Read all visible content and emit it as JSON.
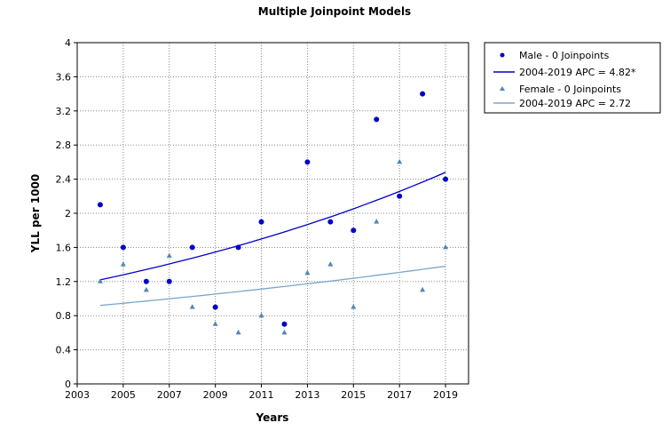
{
  "chart_data": {
    "type": "scatter",
    "title": "Multiple Joinpoint Models",
    "xlabel": "Years",
    "ylabel": "YLL per 1000",
    "xlim": [
      2003,
      2020
    ],
    "ylim": [
      0,
      4
    ],
    "x_ticks": [
      "2003",
      "2005",
      "2007",
      "2009",
      "2011",
      "2013",
      "2015",
      "2017",
      "2019"
    ],
    "y_ticks": [
      "0",
      "0.4",
      "0.8",
      "1.2",
      "1.6",
      "2",
      "2.4",
      "2.8",
      "3.2",
      "3.6",
      "4"
    ],
    "grid": true,
    "legend_position": "right",
    "series": [
      {
        "name": "Male - 0 Joinpoints",
        "marker": "circle",
        "color": "#0000cc",
        "points": [
          [
            2004,
            2.1
          ],
          [
            2005,
            1.6
          ],
          [
            2006,
            1.2
          ],
          [
            2007,
            1.2
          ],
          [
            2008,
            1.6
          ],
          [
            2009,
            0.9
          ],
          [
            2010,
            1.6
          ],
          [
            2011,
            1.9
          ],
          [
            2012,
            0.7
          ],
          [
            2013,
            2.6
          ],
          [
            2014,
            1.9
          ],
          [
            2015,
            1.8
          ],
          [
            2016,
            3.1
          ],
          [
            2017,
            2.2
          ],
          [
            2018,
            3.4
          ],
          [
            2019,
            2.4
          ]
        ]
      },
      {
        "name": "2004-2019 APC  = 4.82*",
        "type": "trend",
        "color": "#0000cc",
        "start": [
          2004,
          1.22
        ],
        "end": [
          2019,
          2.48
        ],
        "apc": 4.82
      },
      {
        "name": "Female - 0 Joinpoints",
        "marker": "triangle",
        "color": "#4f88b8",
        "points": [
          [
            2004,
            1.2
          ],
          [
            2005,
            1.4
          ],
          [
            2006,
            1.1
          ],
          [
            2007,
            1.5
          ],
          [
            2008,
            0.9
          ],
          [
            2009,
            0.7
          ],
          [
            2010,
            0.6
          ],
          [
            2011,
            0.8
          ],
          [
            2012,
            0.6
          ],
          [
            2013,
            1.3
          ],
          [
            2014,
            1.4
          ],
          [
            2015,
            0.9
          ],
          [
            2016,
            1.9
          ],
          [
            2017,
            2.6
          ],
          [
            2018,
            1.1
          ],
          [
            2019,
            1.6
          ]
        ]
      },
      {
        "name": "2004-2019 APC  = 2.72",
        "type": "trend",
        "color": "#7ba7cc",
        "start": [
          2004,
          0.92
        ],
        "end": [
          2019,
          1.38
        ],
        "apc": 2.72
      }
    ]
  }
}
